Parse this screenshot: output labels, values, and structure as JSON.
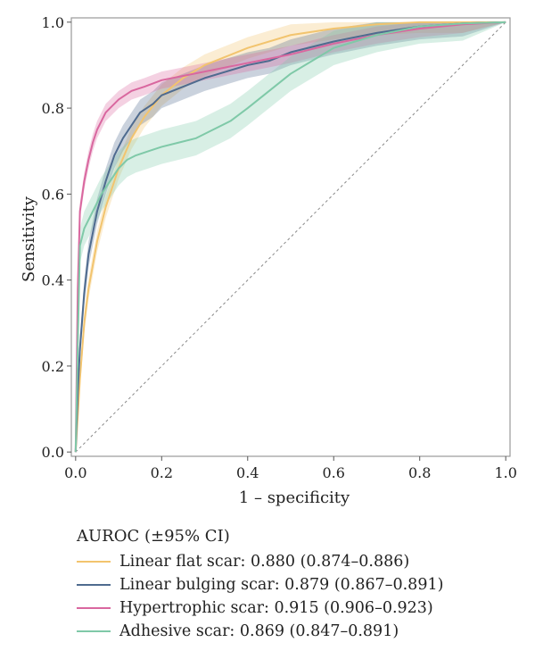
{
  "chart_data": {
    "type": "line",
    "title": "",
    "xlabel": "1 – specificity",
    "ylabel": "Sensitivity",
    "xlim": [
      -0.01,
      1.01
    ],
    "ylim": [
      -0.01,
      1.01
    ],
    "xticks": [
      "0.0",
      "0.2",
      "0.4",
      "0.6",
      "0.8",
      "1.0"
    ],
    "yticks": [
      "0.0",
      "0.2",
      "0.4",
      "0.6",
      "0.8",
      "1.0"
    ],
    "grid": false,
    "legend_placement": "below",
    "legend_title": "AUROC (±95% CI)",
    "reference_line": "diagonal dashed",
    "series": [
      {
        "name": "Linear flat scar: 0.880 (0.874–0.886)",
        "color": "#f2c46e",
        "x": [
          0,
          0.01,
          0.02,
          0.03,
          0.05,
          0.07,
          0.1,
          0.13,
          0.16,
          0.2,
          0.25,
          0.3,
          0.35,
          0.4,
          0.5,
          0.6,
          0.7,
          0.8,
          0.9,
          1.0
        ],
        "y": [
          0,
          0.17,
          0.3,
          0.38,
          0.49,
          0.57,
          0.66,
          0.73,
          0.78,
          0.83,
          0.87,
          0.9,
          0.92,
          0.94,
          0.97,
          0.985,
          0.995,
          1.0,
          1.0,
          1.0
        ],
        "band": 0.025
      },
      {
        "name": "Linear bulging scar: 0.879 (0.867–0.891)",
        "color": "#4f6b8f",
        "x": [
          0,
          0.005,
          0.01,
          0.02,
          0.03,
          0.05,
          0.07,
          0.09,
          0.11,
          0.13,
          0.15,
          0.18,
          0.2,
          0.25,
          0.3,
          0.35,
          0.4,
          0.45,
          0.5,
          0.6,
          0.7,
          0.8,
          0.9,
          1.0
        ],
        "y": [
          0,
          0.14,
          0.24,
          0.37,
          0.46,
          0.56,
          0.63,
          0.69,
          0.73,
          0.76,
          0.79,
          0.81,
          0.83,
          0.85,
          0.87,
          0.885,
          0.9,
          0.91,
          0.93,
          0.955,
          0.975,
          0.99,
          0.997,
          1.0
        ],
        "band": 0.03
      },
      {
        "name": "Hypertrophic scar: 0.915 (0.906–0.923)",
        "color": "#d9679f",
        "x": [
          0,
          0.005,
          0.01,
          0.02,
          0.03,
          0.04,
          0.05,
          0.06,
          0.07,
          0.08,
          0.1,
          0.13,
          0.16,
          0.2,
          0.25,
          0.3,
          0.35,
          0.4,
          0.45,
          0.5,
          0.6,
          0.7,
          0.8,
          0.9,
          1.0
        ],
        "y": [
          0,
          0.38,
          0.56,
          0.63,
          0.68,
          0.72,
          0.75,
          0.77,
          0.79,
          0.8,
          0.82,
          0.84,
          0.85,
          0.865,
          0.875,
          0.885,
          0.895,
          0.905,
          0.915,
          0.925,
          0.95,
          0.97,
          0.985,
          0.995,
          1.0
        ],
        "band": 0.02
      },
      {
        "name": "Adhesive scar: 0.869 (0.847–0.891)",
        "color": "#7fc9a8",
        "x": [
          0,
          0.005,
          0.01,
          0.02,
          0.04,
          0.06,
          0.08,
          0.1,
          0.12,
          0.14,
          0.17,
          0.2,
          0.24,
          0.28,
          0.32,
          0.36,
          0.4,
          0.45,
          0.5,
          0.55,
          0.6,
          0.7,
          0.8,
          0.9,
          1.0
        ],
        "y": [
          0,
          0.25,
          0.48,
          0.52,
          0.56,
          0.6,
          0.63,
          0.66,
          0.68,
          0.69,
          0.7,
          0.71,
          0.72,
          0.73,
          0.75,
          0.77,
          0.8,
          0.84,
          0.88,
          0.91,
          0.94,
          0.97,
          0.99,
          0.997,
          1.0
        ],
        "band": 0.04
      }
    ]
  }
}
